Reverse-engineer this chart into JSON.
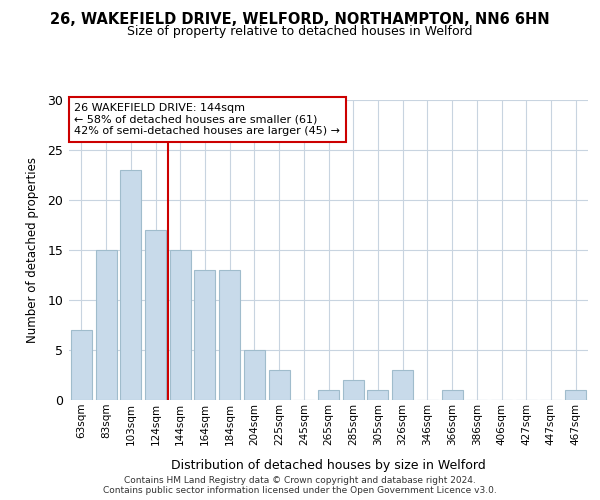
{
  "title": "26, WAKEFIELD DRIVE, WELFORD, NORTHAMPTON, NN6 6HN",
  "subtitle": "Size of property relative to detached houses in Welford",
  "xlabel": "Distribution of detached houses by size in Welford",
  "ylabel": "Number of detached properties",
  "categories": [
    "63sqm",
    "83sqm",
    "103sqm",
    "124sqm",
    "144sqm",
    "164sqm",
    "184sqm",
    "204sqm",
    "225sqm",
    "245sqm",
    "265sqm",
    "285sqm",
    "305sqm",
    "326sqm",
    "346sqm",
    "366sqm",
    "386sqm",
    "406sqm",
    "427sqm",
    "447sqm",
    "467sqm"
  ],
  "values": [
    7,
    15,
    23,
    17,
    15,
    13,
    13,
    5,
    3,
    0,
    1,
    2,
    1,
    3,
    0,
    1,
    0,
    0,
    0,
    0,
    1
  ],
  "bar_color": "#c8daea",
  "bar_edge_color": "#a0bccc",
  "vline_index": 4,
  "vline_color": "#cc0000",
  "annotation_text": "26 WAKEFIELD DRIVE: 144sqm\n← 58% of detached houses are smaller (61)\n42% of semi-detached houses are larger (45) →",
  "annotation_box_facecolor": "#ffffff",
  "annotation_box_edgecolor": "#cc0000",
  "ylim": [
    0,
    30
  ],
  "yticks": [
    0,
    5,
    10,
    15,
    20,
    25,
    30
  ],
  "footer_text": "Contains HM Land Registry data © Crown copyright and database right 2024.\nContains public sector information licensed under the Open Government Licence v3.0.",
  "bg_color": "#ffffff",
  "plot_bg_color": "#ffffff",
  "grid_color": "#c8d4e0"
}
